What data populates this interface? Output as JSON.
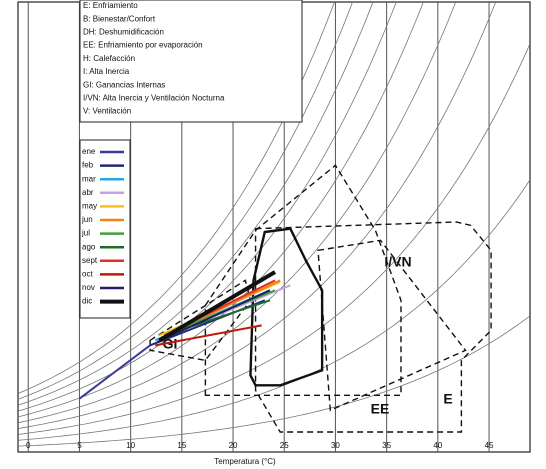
{
  "chart_data": {
    "type": "psychrometric",
    "x_label": "Temperatura (°C)",
    "xlim": [
      -1,
      49
    ],
    "ylim": [
      0,
      27
    ],
    "xticks": [
      0,
      5,
      10,
      15,
      20,
      25,
      30,
      35,
      40,
      45
    ],
    "grid": true,
    "legend_position": "top-left",
    "zone_legend": [
      "E: Enfriamiento",
      "B: Bienestar/Confort",
      "DH: Deshumidificación",
      "EE: Enfriamiento por evaporación",
      "H: Calefacción",
      "I: Alta Inercia",
      "GI: Ganancias Internas",
      "I/VN: Alta Inercia y Ventilación Nocturna",
      "V: Ventilación"
    ],
    "zones": [
      {
        "x": [
          23.1,
          25.6,
          27.1,
          28.7,
          28.7,
          24.6,
          22.2,
          21.7,
          22.0
        ],
        "y": [
          13.2,
          13.4,
          11.5,
          9.7,
          4.9,
          4.0,
          4.0,
          4.6,
          10.3
        ],
        "dashed": false
      },
      {
        "label": "EE",
        "x": [
          17.3,
          17.3,
          22.2,
          30.0,
          33.9,
          36.4,
          36.4
        ],
        "y": [
          3.4,
          8.8,
          13.3,
          17.2,
          13.3,
          9.1,
          3.4
        ],
        "dashed": true
      },
      {
        "label": "E",
        "x": [
          22.2,
          41.8,
          43.2,
          45.2,
          45.2,
          42.3,
          42.3,
          24.6,
          22.2
        ],
        "y": [
          13.4,
          13.8,
          13.6,
          12.1,
          7.3,
          5.5,
          1.2,
          1.2,
          3.7
        ],
        "dashed": true
      },
      {
        "label": "I/VN",
        "x": [
          28.3,
          34.4,
          42.7,
          29.5
        ],
        "y": [
          12.1,
          12.7,
          6.1,
          2.5
        ],
        "dashed": true
      },
      {
        "label": "GI",
        "x": [
          11.9,
          21.2,
          21.7,
          17.3,
          11.9
        ],
        "y": [
          6.7,
          10.3,
          9.1,
          5.5,
          6.1
        ],
        "dashed": true
      }
    ],
    "series": [
      {
        "name": "ene",
        "color": "#3b3b9a",
        "x": [
          5.0,
          11.9
        ],
        "values": [
          3.2,
          6.4
        ]
      },
      {
        "name": "feb",
        "color": "#1f2a7a",
        "x": [
          11.9,
          23.1
        ],
        "values": [
          6.4,
          9.1
        ]
      },
      {
        "name": "mar",
        "color": "#22aadd",
        "x": [
          12.4,
          23.6
        ],
        "values": [
          6.7,
          9.7
        ]
      },
      {
        "name": "abr",
        "color": "#c9a0e0",
        "x": [
          12.8,
          25.6
        ],
        "values": [
          6.8,
          10.0
        ]
      },
      {
        "name": "may",
        "color": "#f2c21a",
        "x": [
          12.8,
          24.6
        ],
        "values": [
          7.0,
          10.2
        ]
      },
      {
        "name": "jun",
        "color": "#f08020",
        "x": [
          12.8,
          24.6
        ],
        "values": [
          6.8,
          10.3
        ]
      },
      {
        "name": "jul",
        "color": "#40a040",
        "x": [
          13.3,
          24.1
        ],
        "values": [
          7.0,
          9.7
        ]
      },
      {
        "name": "ago",
        "color": "#1f6b2a",
        "x": [
          13.8,
          23.6
        ],
        "values": [
          7.1,
          9.1
        ]
      },
      {
        "name": "sept",
        "color": "#e03020",
        "x": [
          13.3,
          24.1
        ],
        "values": [
          7.0,
          10.3
        ]
      },
      {
        "name": "oct",
        "color": "#c01808",
        "x": [
          12.4,
          22.8
        ],
        "values": [
          6.4,
          7.6
        ]
      },
      {
        "name": "nov",
        "color": "#202060",
        "x": [
          12.6,
          23.6
        ],
        "values": [
          6.6,
          9.7
        ]
      },
      {
        "name": "dic",
        "color": "#111111",
        "x": [
          12.8,
          24.1
        ],
        "values": [
          6.7,
          10.8
        ],
        "width": 4
      }
    ]
  }
}
